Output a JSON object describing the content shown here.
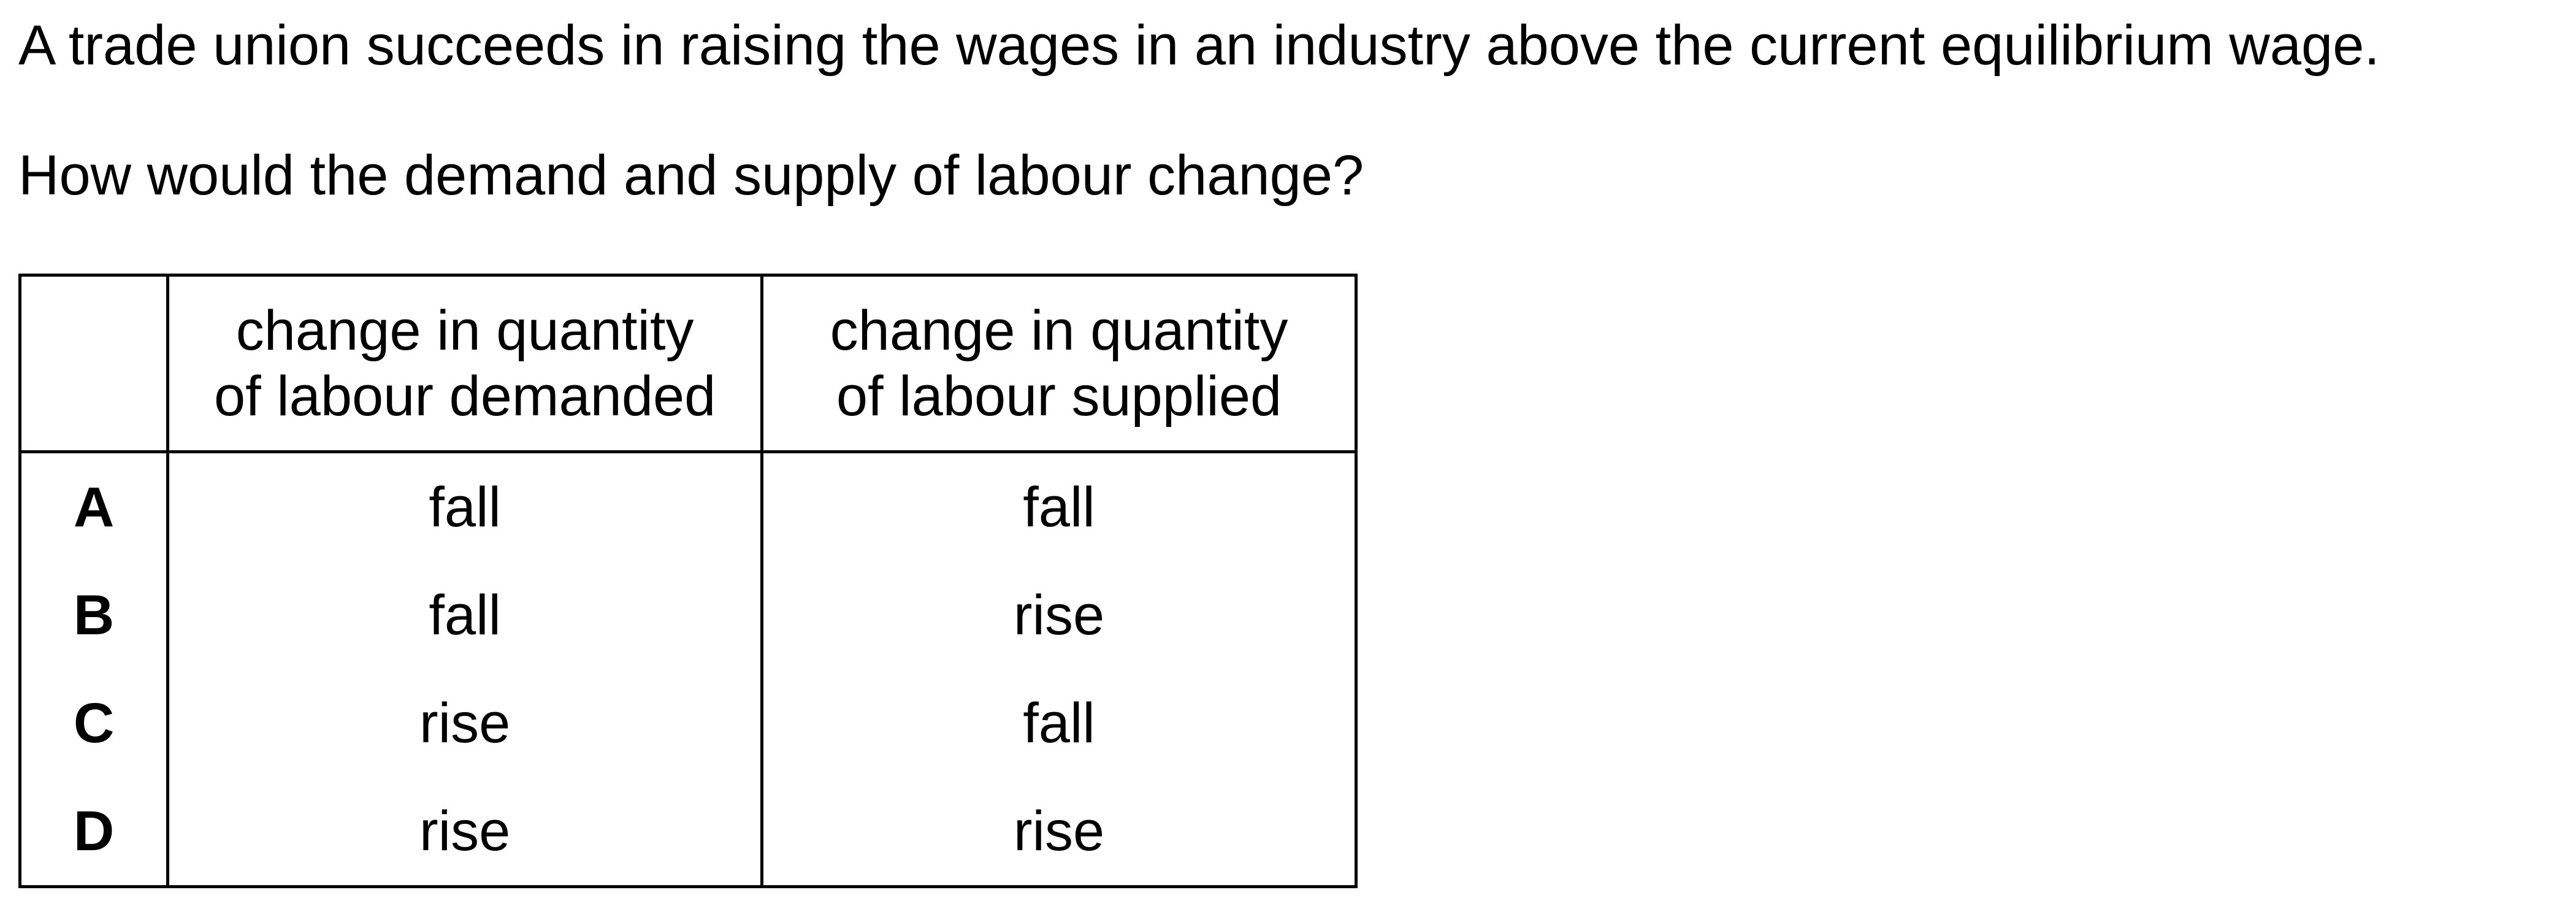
{
  "stem": "A trade union succeeds in raising the wages in an industry above the current equilibrium wage.",
  "question": "How would the demand and supply of labour change?",
  "table": {
    "headers": {
      "key": "",
      "demanded_line1": "change in quantity",
      "demanded_line2": "of labour demanded",
      "supplied_line1": "change in quantity",
      "supplied_line2": "of labour supplied"
    },
    "rows": [
      {
        "key": "A",
        "demanded": "fall",
        "supplied": "fall"
      },
      {
        "key": "B",
        "demanded": "fall",
        "supplied": "rise"
      },
      {
        "key": "C",
        "demanded": "rise",
        "supplied": "fall"
      },
      {
        "key": "D",
        "demanded": "rise",
        "supplied": "rise"
      }
    ]
  }
}
